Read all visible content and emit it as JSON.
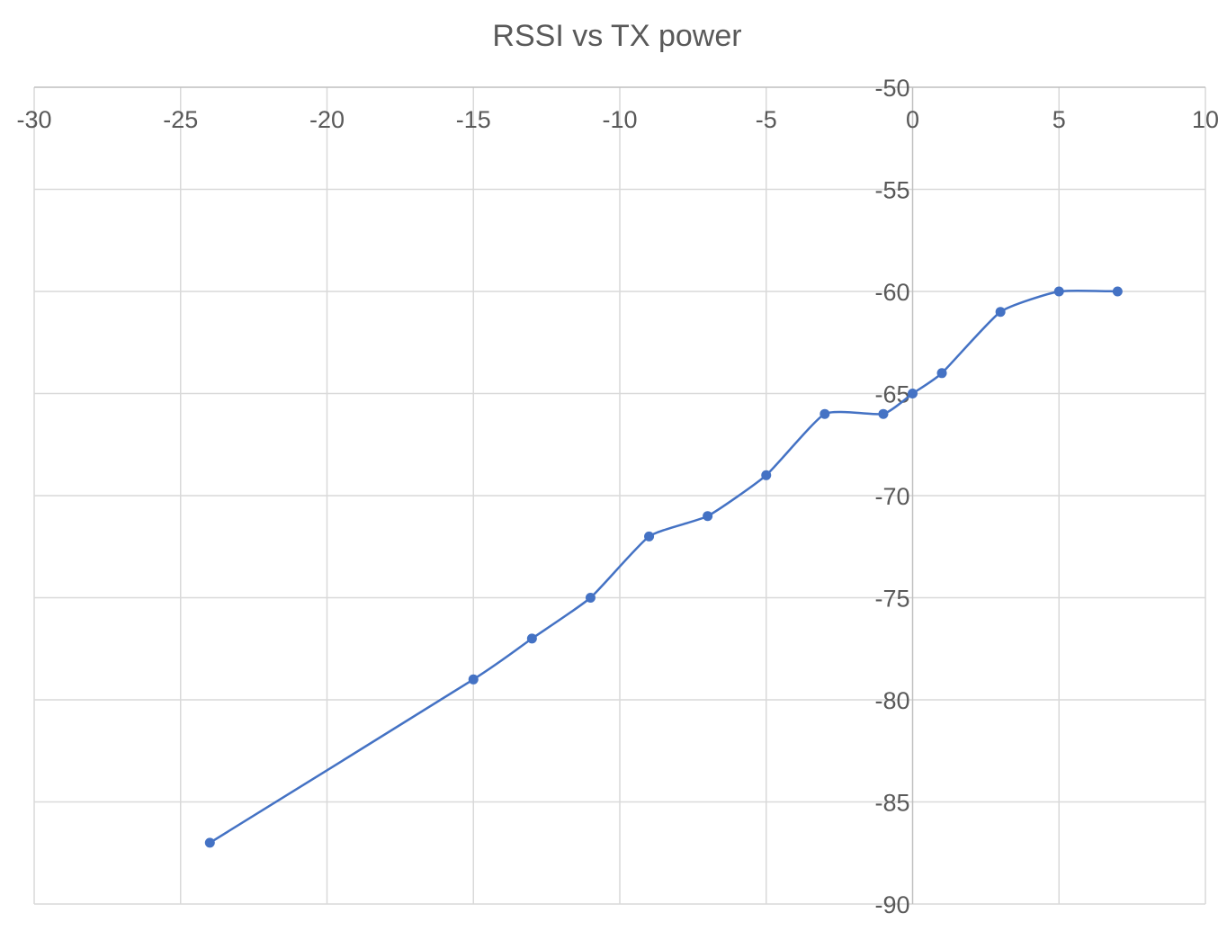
{
  "chart_data": {
    "type": "scatter",
    "title": "RSSI vs TX power",
    "xlabel": "",
    "ylabel": "",
    "xlim": [
      -30,
      10
    ],
    "ylim": [
      -90,
      -50
    ],
    "x_ticks": [
      "-30",
      "-25",
      "-20",
      "-15",
      "-10",
      "-5",
      "0",
      "5",
      "10"
    ],
    "y_ticks": [
      "-50",
      "-55",
      "-60",
      "-65",
      "-70",
      "-75",
      "-80",
      "-85",
      "-90"
    ],
    "grid": true,
    "legend": "none",
    "line_style": "smooth line with markers",
    "series": [
      {
        "color": "#4472c4",
        "x": [
          -24,
          -15,
          -13,
          -11,
          -9,
          -7,
          -5,
          -3,
          -1,
          0,
          1,
          3,
          5,
          7
        ],
        "y": [
          -87,
          -79,
          -77,
          -75,
          -72,
          -71,
          -69,
          -66,
          -66,
          -65,
          -64,
          -61,
          -60,
          -60
        ]
      }
    ]
  }
}
